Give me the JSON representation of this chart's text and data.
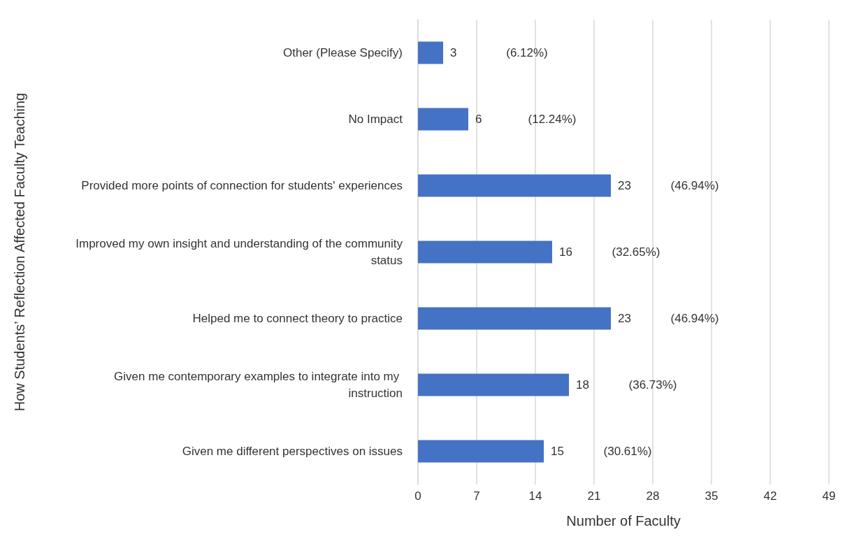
{
  "chart_data": {
    "type": "bar",
    "orientation": "horizontal",
    "xlabel": "Number of Faculty",
    "ylabel": "How Students’ Reflection Affected Faculty Teaching",
    "categories": [
      "Other (Please Specify)",
      "No Impact",
      "Provided more points of connection for students' experiences",
      "Improved my own insight and understanding of the community status",
      "Helped me to connect theory to practice",
      "Given me contemporary examples to integrate into my instruction",
      "Given me different perspectives on issues"
    ],
    "values": [
      3,
      6,
      23,
      16,
      23,
      18,
      15
    ],
    "color": "#4472c4",
    "data_labels": true,
    "xlim": [
      0,
      49
    ],
    "xticks": [
      0,
      7,
      14,
      21,
      28,
      35,
      42,
      49
    ],
    "grid": "x",
    "annotations": [
      "(6.12%)",
      "(12.24%)",
      "(46.94%)",
      "(32.65%)",
      "(46.94%)",
      "(36.73%)",
      "(30.61%)"
    ]
  }
}
